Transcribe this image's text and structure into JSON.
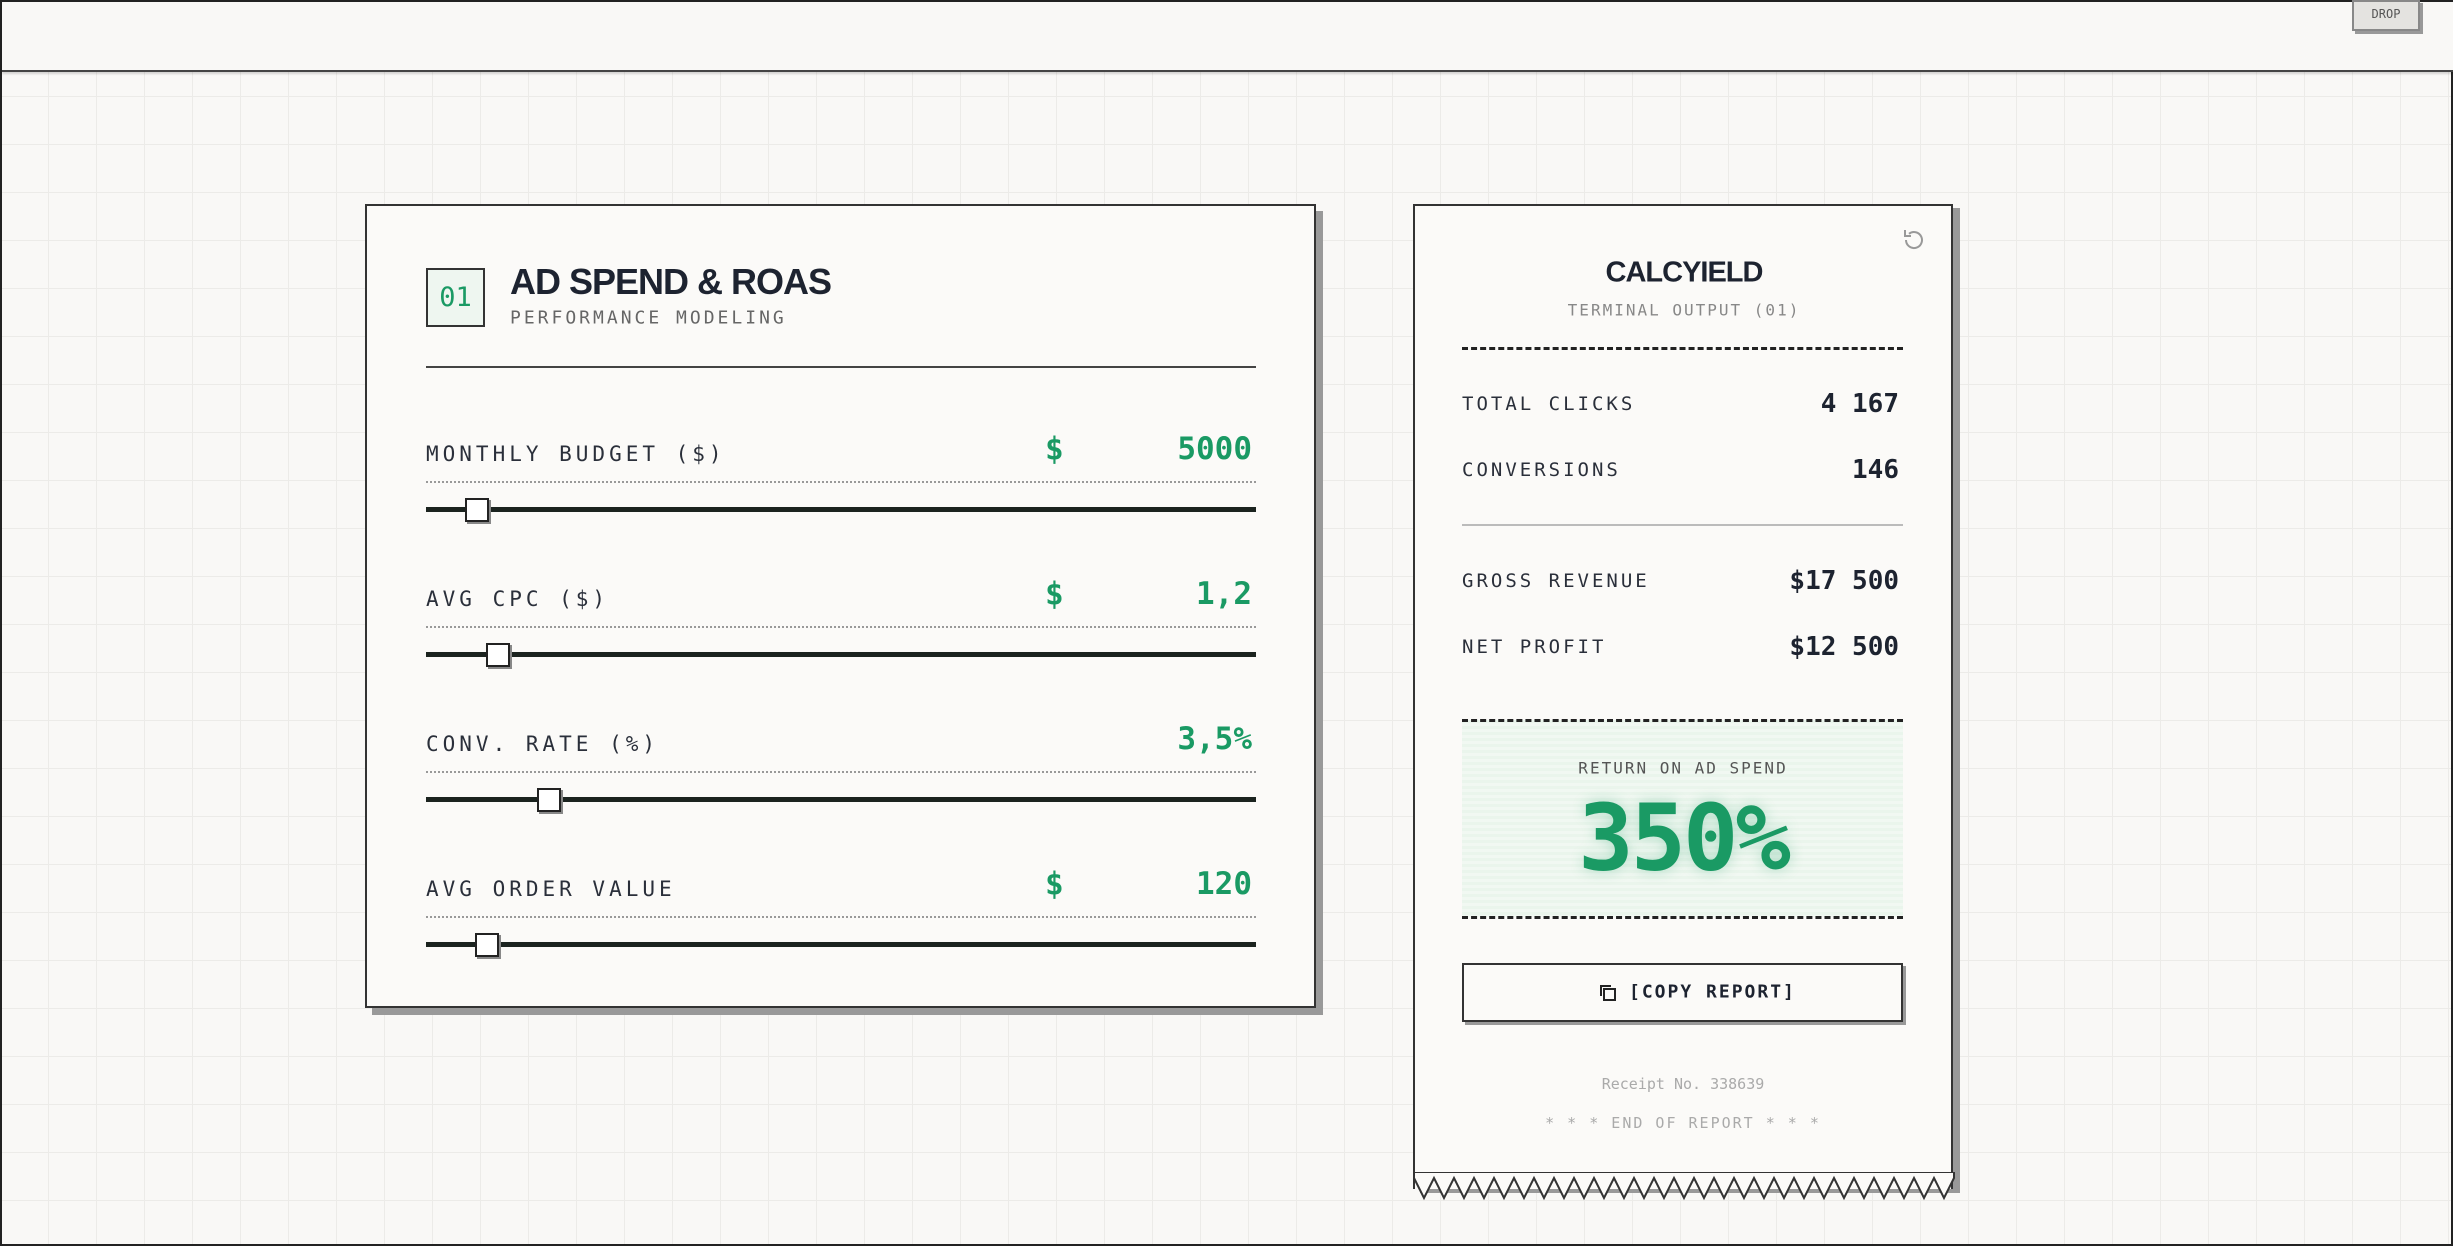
{
  "top_bar": {
    "button": "DROP"
  },
  "calculator": {
    "number": "01",
    "title": "AD SPEND & ROAS",
    "subtitle": "PERFORMANCE MODELING",
    "fields": [
      {
        "label": "MONTHLY BUDGET ($)",
        "prefix": "$",
        "value": "5000"
      },
      {
        "label": "AVG CPC ($)",
        "prefix": "$",
        "value": "1,2"
      },
      {
        "label": "CONV. RATE (%)",
        "value": "3,5%"
      },
      {
        "label": "AVG ORDER VALUE",
        "prefix": "$",
        "value": "120"
      }
    ]
  },
  "receipt": {
    "brand": "CALCYIELD",
    "subtitle": "TERMINAL OUTPUT (01)",
    "rows": [
      {
        "label": "TOTAL CLICKS",
        "value": "4 167"
      },
      {
        "label": "CONVERSIONS",
        "value": "146"
      },
      {
        "label": "GROSS REVENUE",
        "value": "$17 500"
      },
      {
        "label": "NET PROFIT",
        "value": "$12 500"
      }
    ],
    "roas_label": "RETURN ON AD SPEND",
    "roas_value": "350%",
    "copy_button": "[COPY REPORT]",
    "receipt_no": "Receipt No. 338639",
    "footer": "* * * END OF REPORT * * *"
  }
}
